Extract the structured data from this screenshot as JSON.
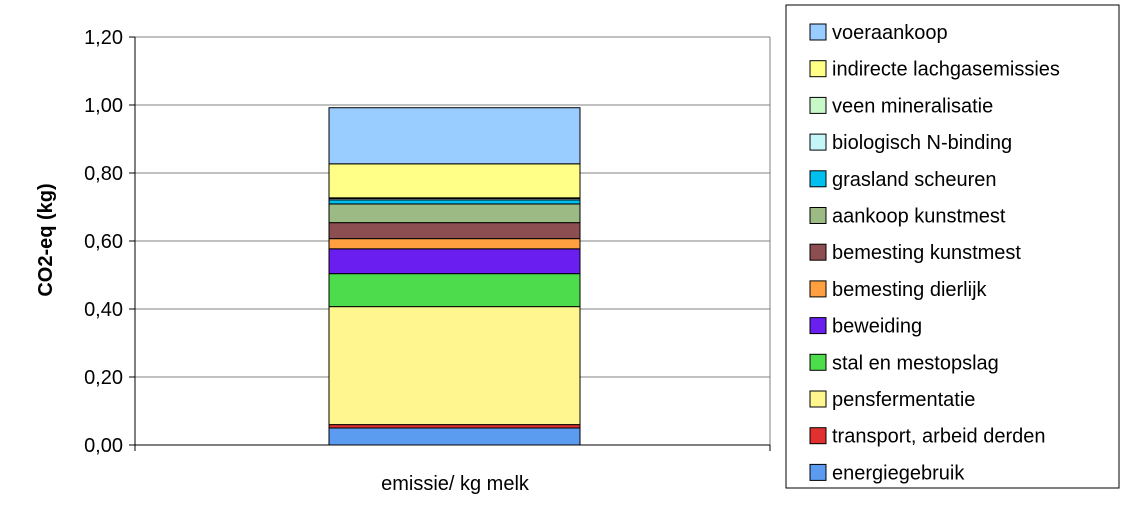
{
  "chart_data": {
    "type": "bar",
    "stacked": true,
    "categories": [
      "emissie/ kg melk"
    ],
    "ylabel": "CO2-eq (kg)",
    "xlabel": "",
    "ylim": [
      0,
      1.2
    ],
    "yticks": [
      "0,00",
      "0,20",
      "0,40",
      "0,60",
      "0,80",
      "1,00",
      "1,20"
    ],
    "grid": true,
    "legend_position": "right",
    "series": [
      {
        "name": "energiegebruik",
        "values": [
          0.05
        ],
        "color": "#5b9bf0"
      },
      {
        "name": "transport, arbeid derden",
        "values": [
          0.01
        ],
        "color": "#e03030"
      },
      {
        "name": "pensfermentatie",
        "values": [
          0.347
        ],
        "color": "#fff68f"
      },
      {
        "name": "stal en mestopslag",
        "values": [
          0.097
        ],
        "color": "#4cdc4c"
      },
      {
        "name": "beweiding",
        "values": [
          0.073
        ],
        "color": "#6a1ef0"
      },
      {
        "name": "bemesting dierlijk",
        "values": [
          0.03
        ],
        "color": "#ffa040"
      },
      {
        "name": "bemesting kunstmest",
        "values": [
          0.047
        ],
        "color": "#8c4e50"
      },
      {
        "name": "aankoop kunstmest",
        "values": [
          0.055
        ],
        "color": "#9cba84"
      },
      {
        "name": "grasland scheuren",
        "values": [
          0.012
        ],
        "color": "#00c0f0"
      },
      {
        "name": "biologisch N-binding",
        "values": [
          0.004
        ],
        "color": "#c4f6f8"
      },
      {
        "name": "veen mineralisatie",
        "values": [
          0.002
        ],
        "color": "#c8f7c8"
      },
      {
        "name": "indirecte lachgasemissies",
        "values": [
          0.1
        ],
        "color": "#ffff88"
      },
      {
        "name": "voeraankoop",
        "values": [
          0.165
        ],
        "color": "#99ccff"
      }
    ]
  }
}
